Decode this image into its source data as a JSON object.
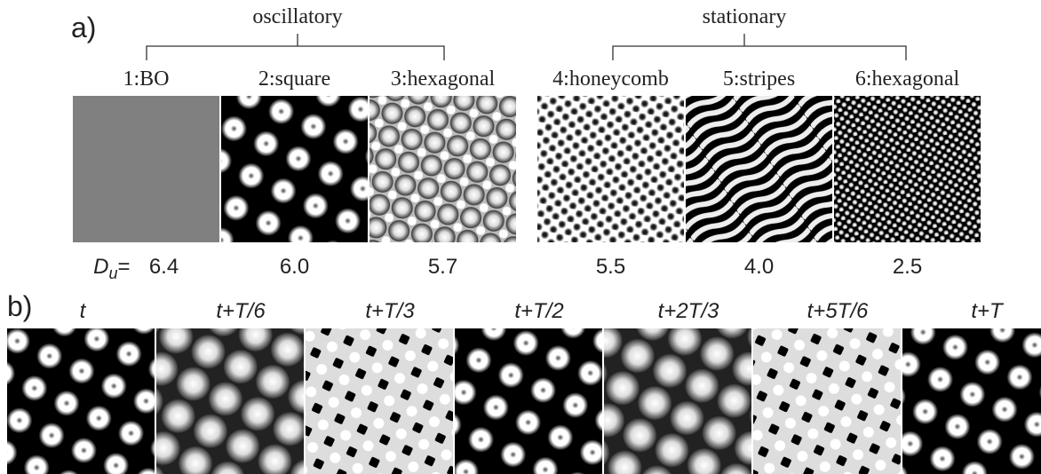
{
  "panel_a": {
    "label": "a)",
    "groups": [
      {
        "name": "oscillatory"
      },
      {
        "name": "stationary"
      }
    ],
    "tiles": [
      {
        "title": "1:BO",
        "value": "6.4"
      },
      {
        "title": "2:square",
        "value": "6.0"
      },
      {
        "title": "3:hexagonal",
        "value": "5.7"
      },
      {
        "title": "4:honeycomb",
        "value": "5.5"
      },
      {
        "title": "5:stripes",
        "value": "4.0"
      },
      {
        "title": "6:hexagonal",
        "value": "2.5"
      }
    ],
    "parameter": {
      "symbol": "D",
      "subscript": "u",
      "sign": "="
    }
  },
  "panel_b": {
    "label": "b)",
    "frames": [
      "t",
      "t+T/6",
      "t+T/3",
      "t+T/2",
      "t+2T/3",
      "t+5T/6",
      "t+T"
    ]
  }
}
